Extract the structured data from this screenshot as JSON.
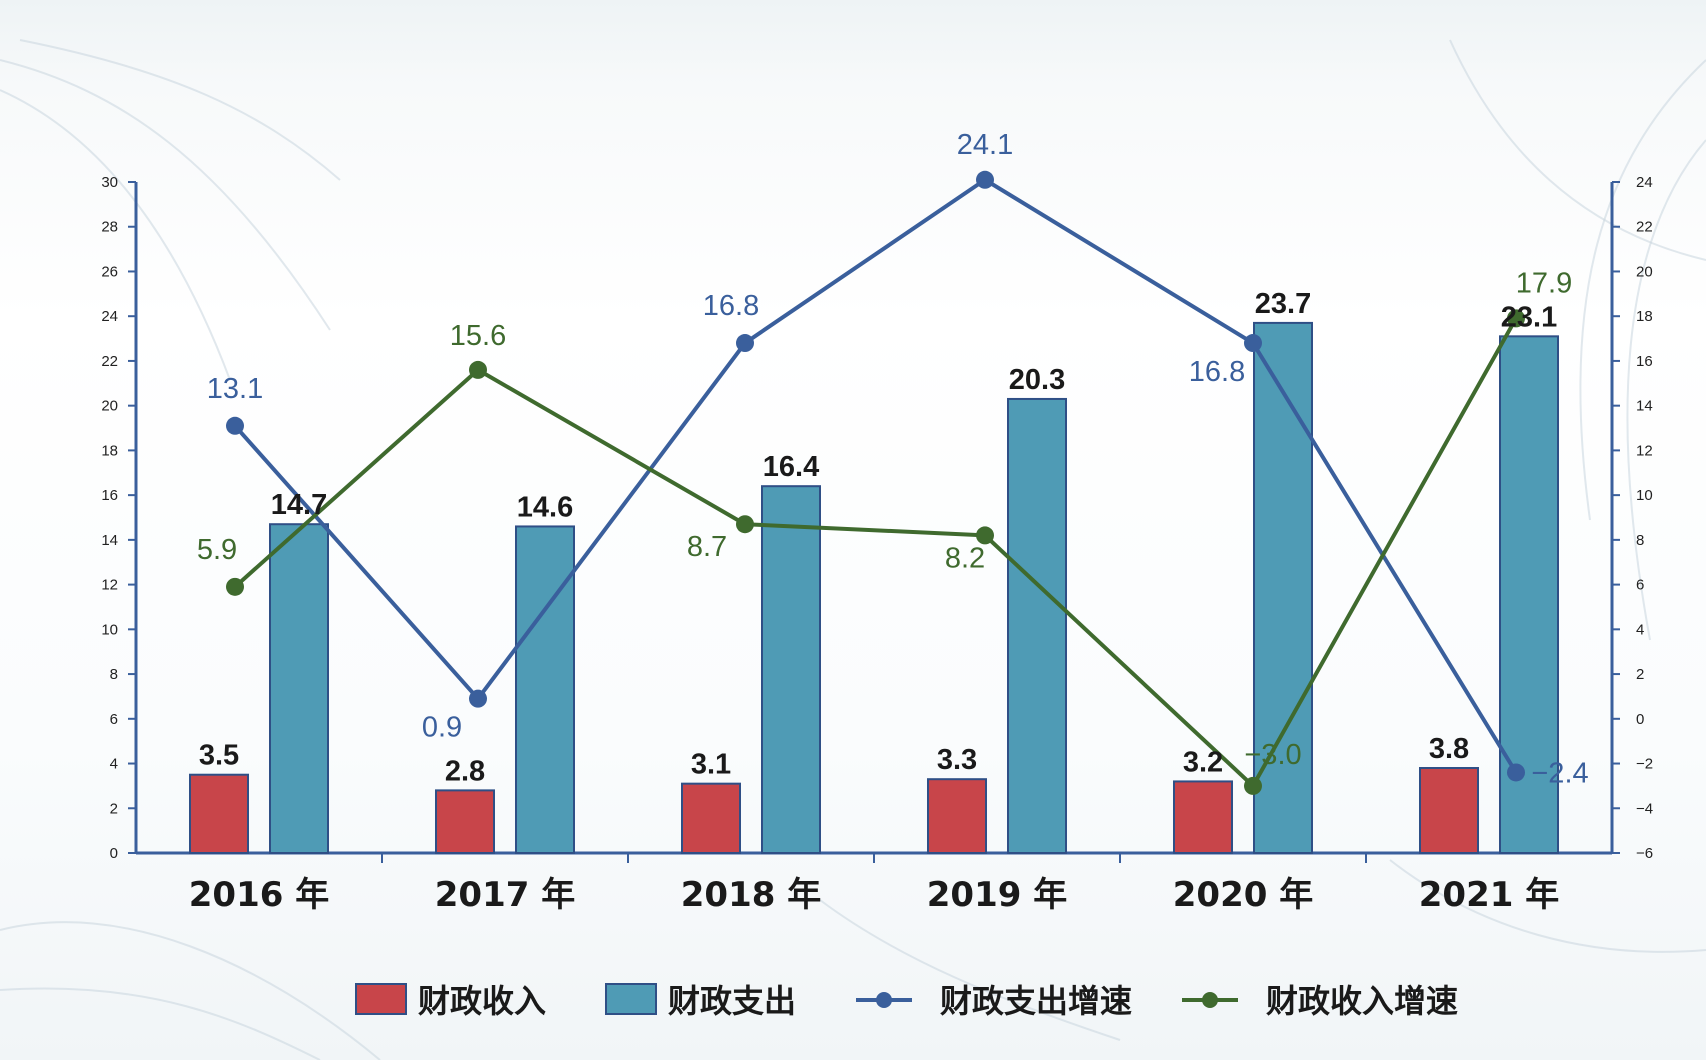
{
  "chart_data": {
    "type": "bar",
    "categories": [
      "2016 年",
      "2017 年",
      "2018 年",
      "2019 年",
      "2020 年",
      "2021 年"
    ],
    "series": [
      {
        "name": "财政收入",
        "type": "bar",
        "axis": "left",
        "color": "#c8454a",
        "values": [
          3.5,
          2.8,
          3.1,
          3.3,
          3.2,
          3.8
        ]
      },
      {
        "name": "财政支出",
        "type": "bar",
        "axis": "left",
        "color": "#4f9bb5",
        "values": [
          14.7,
          14.6,
          16.4,
          20.3,
          23.7,
          23.1
        ]
      },
      {
        "name": "财政支出增速",
        "type": "line",
        "axis": "right",
        "color": "#3a5f9c",
        "values": [
          13.1,
          0.9,
          16.8,
          24.1,
          16.8,
          -2.4
        ],
        "labels": [
          "13.1",
          "0.9",
          "16.8",
          "24.1",
          "16.8",
          "−2.4"
        ]
      },
      {
        "name": "财政收入增速",
        "type": "line",
        "axis": "right",
        "color": "#3f6a2e",
        "values": [
          5.9,
          15.6,
          8.7,
          8.2,
          -3.0,
          17.9
        ],
        "labels": [
          "5.9",
          "15.6",
          "8.7",
          "8.2",
          "−3.0",
          "17.9"
        ]
      }
    ],
    "y_left": {
      "range": [
        0,
        30
      ],
      "ticks": [
        "0",
        "2",
        "4",
        "6",
        "8",
        "10",
        "12",
        "14",
        "16",
        "18",
        "20",
        "22",
        "24",
        "26",
        "28",
        "30"
      ]
    },
    "y_right": {
      "range": [
        -6,
        24
      ],
      "ticks": [
        "−6",
        "−4",
        "−2",
        "0",
        "2",
        "4",
        "6",
        "8",
        "10",
        "12",
        "14",
        "16",
        "18",
        "20",
        "22",
        "24"
      ]
    },
    "grid": false,
    "legend_position": "bottom"
  }
}
